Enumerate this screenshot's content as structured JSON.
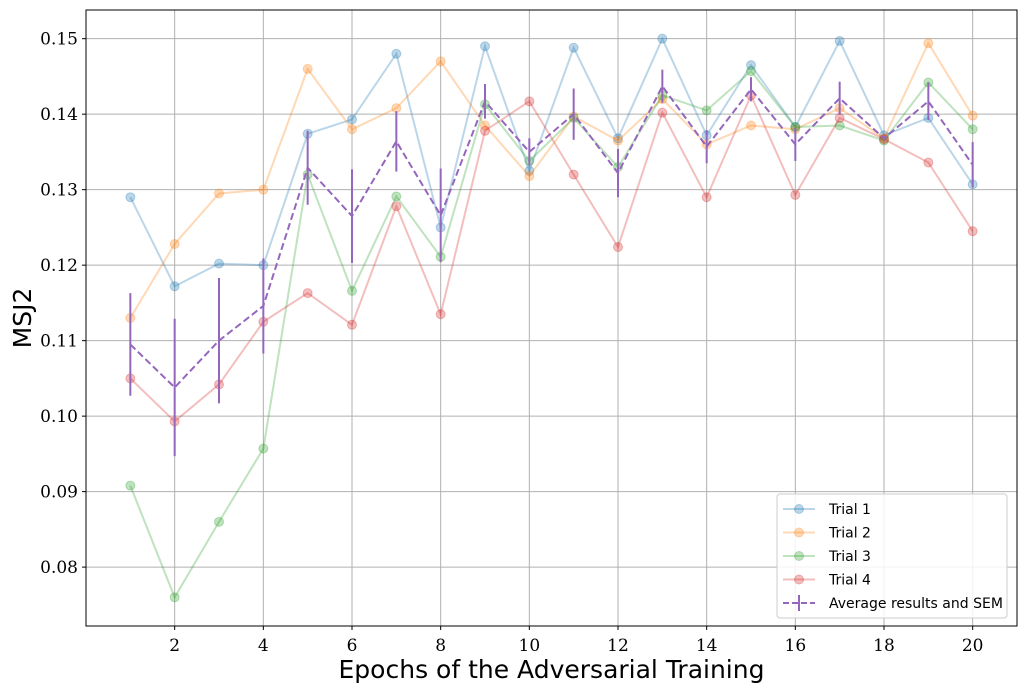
{
  "chart_data": {
    "type": "line",
    "xlabel": "Epochs of the Adversarial Training",
    "ylabel": "MSJ2",
    "xlim": [
      0,
      21
    ],
    "ylim": [
      0.0722,
      0.1538
    ],
    "grid": true,
    "legend_position": "lower-right",
    "x": [
      1,
      2,
      3,
      4,
      5,
      6,
      7,
      8,
      9,
      10,
      11,
      12,
      13,
      14,
      15,
      16,
      17,
      18,
      19,
      20
    ],
    "x_ticks": [
      2,
      4,
      6,
      8,
      10,
      12,
      14,
      16,
      18,
      20
    ],
    "y_ticks": [
      0.08,
      0.09,
      0.1,
      0.11,
      0.12,
      0.13,
      0.14,
      0.15
    ],
    "y_tick_labels": [
      "0.08",
      "0.09",
      "0.10",
      "0.11",
      "0.12",
      "0.13",
      "0.14",
      "0.15"
    ],
    "series": [
      {
        "name": "Trial 1",
        "color": "#1f77b4",
        "values": [
          0.129,
          0.1172,
          0.1202,
          0.12,
          0.1374,
          0.1393,
          0.148,
          0.125,
          0.149,
          0.1325,
          0.1488,
          0.1368,
          0.15,
          0.1372,
          0.1465,
          0.1383,
          0.1497,
          0.1372,
          0.1395,
          0.1307
        ]
      },
      {
        "name": "Trial 2",
        "color": "#ff7f0e",
        "values": [
          0.113,
          0.1228,
          0.1295,
          0.13,
          0.146,
          0.138,
          0.1408,
          0.147,
          0.1385,
          0.1318,
          0.1397,
          0.1365,
          0.142,
          0.136,
          0.1385,
          0.138,
          0.1408,
          0.1368,
          0.1494,
          0.1398
        ]
      },
      {
        "name": "Trial 3",
        "color": "#2ca02c",
        "values": [
          0.0908,
          0.076,
          0.086,
          0.0957,
          0.132,
          0.1166,
          0.1291,
          0.1211,
          0.1413,
          0.1338,
          0.1395,
          0.133,
          0.1425,
          0.1405,
          0.1457,
          0.1383,
          0.1385,
          0.1365,
          0.1442,
          0.138
        ]
      },
      {
        "name": "Trial 4",
        "color": "#d62728",
        "values": [
          0.105,
          0.0993,
          0.1042,
          0.1125,
          0.1163,
          0.1121,
          0.1278,
          0.1135,
          0.1378,
          0.1417,
          0.132,
          0.1224,
          0.1402,
          0.129,
          0.1425,
          0.1293,
          0.1395,
          0.1367,
          0.1336,
          0.1245
        ]
      }
    ],
    "average": {
      "name": "Average results and SEM",
      "color": "#9467bd",
      "values": [
        0.1095,
        0.1038,
        0.11,
        0.1146,
        0.1329,
        0.1265,
        0.1364,
        0.1266,
        0.1417,
        0.135,
        0.14,
        0.1322,
        0.1437,
        0.1357,
        0.1433,
        0.136,
        0.1421,
        0.1368,
        0.1417,
        0.1333
      ],
      "sem": [
        0.0068,
        0.0091,
        0.0083,
        0.0063,
        0.0049,
        0.0062,
        0.004,
        0.0062,
        0.0023,
        0.0018,
        0.0034,
        0.0032,
        0.0022,
        0.0022,
        0.0016,
        0.0022,
        0.0022,
        0.0003,
        0.0025,
        0.003
      ]
    }
  }
}
